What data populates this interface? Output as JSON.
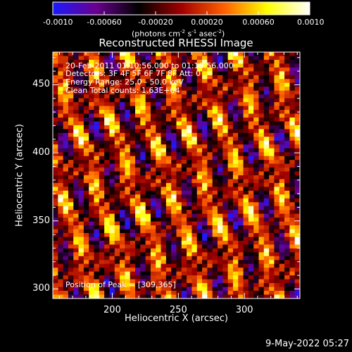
{
  "chart_data": {
    "type": "heatmap",
    "title": "Reconstructed RHESSI Image",
    "xlabel": "Heliocentric X (arcsec)",
    "ylabel": "Heliocentric Y (arcsec)",
    "xlim": [
      155,
      342
    ],
    "ylim": [
      293,
      474
    ],
    "x_ticks": [
      "200",
      "250",
      "300"
    ],
    "x_tick_values": [
      200,
      250,
      300
    ],
    "y_ticks": [
      "300",
      "350",
      "400",
      "450"
    ],
    "y_tick_values": [
      300,
      350,
      400,
      450
    ],
    "colorbar": {
      "range": [
        -0.001,
        0.001
      ],
      "tick_labels": [
        "-0.0010",
        "-0.00060",
        "-0.00020",
        "0.00020",
        "0.00060",
        "0.0010"
      ],
      "tick_values": [
        -0.001,
        -0.0006,
        -0.0002,
        0.0002,
        0.0006,
        0.001
      ],
      "unit_label_prefix": "(photons cm",
      "unit_sup1": "-2",
      "unit_mid": " s",
      "unit_sup2": "-1",
      "unit_mid2": " asec",
      "unit_sup3": "-2",
      "unit_suffix": ")",
      "colors": [
        "#1a1aff",
        "#6a0090",
        "#000000",
        "#a00000",
        "#ff6000",
        "#ffff00",
        "#ffffff"
      ]
    },
    "annotations": {
      "time_range": "20-Feb-2011 01:10:56.000 to 01:18:56.000",
      "detectors": "Detectors: 3F 4F 5F 6F 7F 8F Att: 0",
      "energy": "Energy Range: 25.0 - 50.0 keV",
      "clean": "Clean    Total counts: 1.63E+04",
      "peak": "Position of Peak = [309,365]"
    },
    "footer_date": "9-May-2022 05:27"
  }
}
